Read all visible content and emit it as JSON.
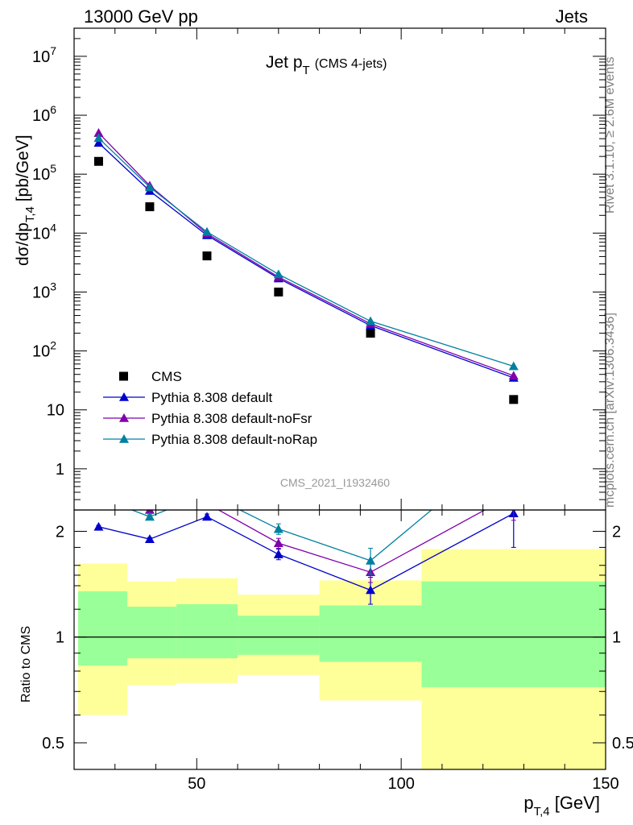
{
  "header": {
    "left": "13000 GeV pp",
    "right": "Jets"
  },
  "main_title": {
    "text": "Jet p",
    "sub": "T",
    "extra": "(CMS 4-jets)"
  },
  "ylabel": {
    "pre": "dσ/dp",
    "sub": "T,4",
    "post": " [pb/GeV]"
  },
  "ratio_ylabel": "Ratio to CMS",
  "xlabel": {
    "pre": "p",
    "sub": "T,4",
    "post": " [GeV]"
  },
  "analysis_id": "CMS_2021_I1932460",
  "side_labels": {
    "rivet": "Rivet 3.1.10, ≥ 2.6M events",
    "mcplots": "mcplots.cern.ch [arXiv:1306.3436]"
  },
  "colors": {
    "default": "#0000cc",
    "noFsr": "#8000aa",
    "noRap": "#0080a0",
    "band_inner": "#99ff99",
    "band_outer": "#ffff99"
  },
  "chart_data": [
    {
      "type": "line",
      "panel": "main",
      "x_scale": "linear",
      "y_scale": "log",
      "xlim": [
        20,
        150
      ],
      "ylim": [
        0.2,
        30000000
      ],
      "y_ticks": [
        1,
        10,
        100,
        1000,
        10000,
        100000,
        1000000,
        10000000
      ],
      "y_tick_labels": [
        {
          "base": "1",
          "exp": ""
        },
        {
          "base": "10",
          "exp": ""
        },
        {
          "base": "10",
          "exp": "2"
        },
        {
          "base": "10",
          "exp": "3"
        },
        {
          "base": "10",
          "exp": "4"
        },
        {
          "base": "10",
          "exp": "5"
        },
        {
          "base": "10",
          "exp": "6"
        },
        {
          "base": "10",
          "exp": "7"
        }
      ],
      "x": [
        26,
        38.5,
        52.5,
        70,
        92.5,
        127.5
      ],
      "series": [
        {
          "name": "CMS",
          "key": "data",
          "values": [
            165000,
            28000,
            4100,
            1000,
            200,
            15
          ]
        },
        {
          "name": "Pythia 8.308 default",
          "key": "default",
          "values": [
            340000,
            52000,
            9200,
            1700,
            270,
            35
          ]
        },
        {
          "name": "Pythia 8.308 default-noFsr",
          "key": "noFsr",
          "values": [
            500000,
            64000,
            9800,
            1800,
            290,
            38
          ]
        },
        {
          "name": "Pythia 8.308 default-noRap",
          "key": "noRap",
          "values": [
            410000,
            60000,
            10500,
            2000,
            320,
            55
          ]
        }
      ]
    },
    {
      "type": "line",
      "panel": "ratio",
      "y_scale": "log",
      "xlim": [
        20,
        150
      ],
      "ylim": [
        0.42,
        2.3
      ],
      "x_ticks": [
        50,
        100,
        150
      ],
      "y_ticks": [
        0.5,
        1,
        2
      ],
      "x": [
        26,
        38.5,
        52.5,
        70,
        92.5,
        127.5
      ],
      "series": [
        {
          "name": "Pythia 8.308 default",
          "key": "default",
          "values": [
            2.06,
            1.9,
            2.2,
            1.72,
            1.36,
            2.25
          ],
          "err": [
            0.02,
            0.02,
            0.04,
            0.06,
            0.12,
            0.45
          ]
        },
        {
          "name": "Pythia 8.308 default-noFsr",
          "key": "noFsr",
          "values": [
            3.0,
            2.3,
            2.4,
            1.85,
            1.53,
            2.55
          ],
          "err": [
            0.03,
            0.03,
            0.04,
            0.06,
            0.1,
            0.4
          ]
        },
        {
          "name": "Pythia 8.308 default-noRap",
          "key": "noRap",
          "values": [
            2.5,
            2.2,
            2.56,
            2.03,
            1.65,
            3.6
          ],
          "err": [
            0.03,
            0.03,
            0.04,
            0.07,
            0.14,
            0.5
          ]
        }
      ],
      "bands": [
        {
          "x0": 21,
          "x1": 33,
          "inner": [
            0.83,
            1.35
          ],
          "outer": [
            0.6,
            1.62
          ]
        },
        {
          "x0": 33,
          "x1": 45,
          "inner": [
            0.87,
            1.22
          ],
          "outer": [
            0.73,
            1.44
          ]
        },
        {
          "x0": 45,
          "x1": 60,
          "inner": [
            0.87,
            1.24
          ],
          "outer": [
            0.74,
            1.47
          ]
        },
        {
          "x0": 60,
          "x1": 80,
          "inner": [
            0.89,
            1.15
          ],
          "outer": [
            0.78,
            1.32
          ]
        },
        {
          "x0": 80,
          "x1": 105,
          "inner": [
            0.85,
            1.23
          ],
          "outer": [
            0.66,
            1.45
          ]
        },
        {
          "x0": 105,
          "x1": 150,
          "inner": [
            0.72,
            1.44
          ],
          "outer": [
            0.3,
            1.78
          ]
        }
      ]
    }
  ]
}
